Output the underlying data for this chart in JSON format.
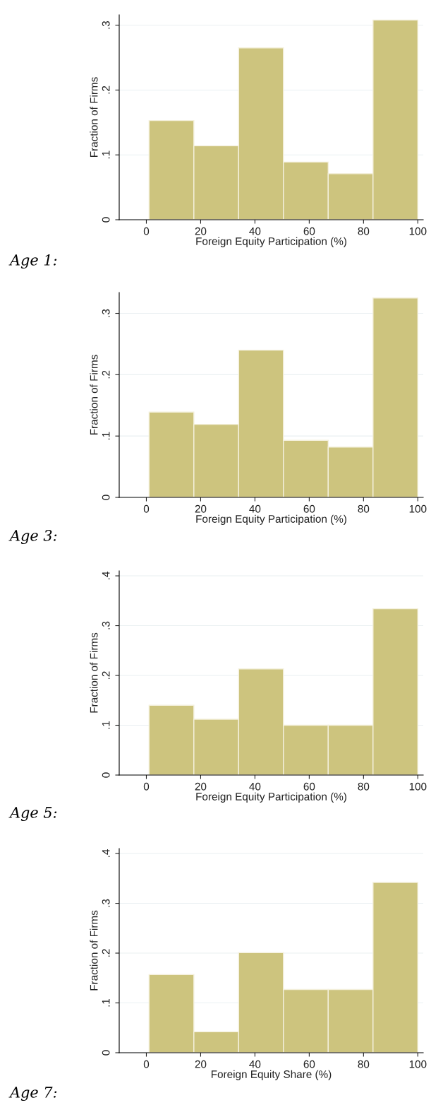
{
  "chart_data": [
    {
      "type": "histogram",
      "annotations": [
        "Age 1:"
      ],
      "xlabel": "Foreign Equity Participation (%)",
      "ylabel": "Fraction of Firms",
      "bins": [
        1,
        17.5,
        34,
        50.5,
        67,
        83.5,
        100
      ],
      "values": [
        0.153,
        0.114,
        0.265,
        0.089,
        0.071,
        0.308
      ],
      "color": "#cdc47e",
      "xlim": [
        -10,
        102
      ],
      "ylim": [
        0,
        0.316
      ],
      "xticks": [
        0,
        20,
        40,
        60,
        80,
        100
      ],
      "yticks": [
        0,
        {
          "value": 0.1,
          "label": ".1"
        },
        {
          "value": 0.2,
          "label": ".2"
        },
        {
          "value": 0.3,
          "label": ".3"
        }
      ],
      "grid": "y"
    },
    {
      "type": "histogram",
      "annotations": [
        "Age 3:"
      ],
      "xlabel": "Foreign Equity Participation (%)",
      "ylabel": "Fraction of Firms",
      "bins": [
        1,
        17.5,
        34,
        50.5,
        67,
        83.5,
        100
      ],
      "values": [
        0.139,
        0.119,
        0.24,
        0.093,
        0.082,
        0.325
      ],
      "color": "#cdc47e",
      "xlim": [
        -10,
        102
      ],
      "ylim": [
        0,
        0.334
      ],
      "xticks": [
        0,
        20,
        40,
        60,
        80,
        100
      ],
      "yticks": [
        0,
        {
          "value": 0.1,
          "label": ".1"
        },
        {
          "value": 0.2,
          "label": ".2"
        },
        {
          "value": 0.3,
          "label": ".3"
        }
      ],
      "grid": "y"
    },
    {
      "type": "histogram",
      "annotations": [
        "Age 5:"
      ],
      "xlabel": "Foreign Equity Participation (%)",
      "ylabel": "Fraction of Firms",
      "bins": [
        1,
        17.5,
        34,
        50.5,
        67,
        83.5,
        100
      ],
      "values": [
        0.14,
        0.112,
        0.213,
        0.1,
        0.1,
        0.334
      ],
      "color": "#cdc47e",
      "xlim": [
        -10,
        102
      ],
      "ylim": [
        0,
        0.41
      ],
      "xticks": [
        0,
        20,
        40,
        60,
        80,
        100
      ],
      "yticks": [
        0,
        {
          "value": 0.1,
          "label": ".1"
        },
        {
          "value": 0.2,
          "label": ".2"
        },
        {
          "value": 0.3,
          "label": ".3"
        },
        {
          "value": 0.4,
          "label": ".4"
        }
      ],
      "grid": "y"
    },
    {
      "type": "histogram",
      "annotations": [
        "Age 7:"
      ],
      "xlabel": "Foreign Equity Share (%)",
      "ylabel": "Fraction of Firms",
      "bins": [
        1,
        17.5,
        34,
        50.5,
        67,
        83.5,
        100
      ],
      "values": [
        0.157,
        0.042,
        0.201,
        0.127,
        0.127,
        0.342
      ],
      "color": "#cdc47e",
      "xlim": [
        -10,
        102
      ],
      "ylim": [
        0,
        0.41
      ],
      "xticks": [
        0,
        20,
        40,
        60,
        80,
        100
      ],
      "yticks": [
        0,
        {
          "value": 0.1,
          "label": ".1"
        },
        {
          "value": 0.2,
          "label": ".2"
        },
        {
          "value": 0.3,
          "label": ".3"
        },
        {
          "value": 0.4,
          "label": ".4"
        }
      ],
      "grid": "y"
    }
  ]
}
